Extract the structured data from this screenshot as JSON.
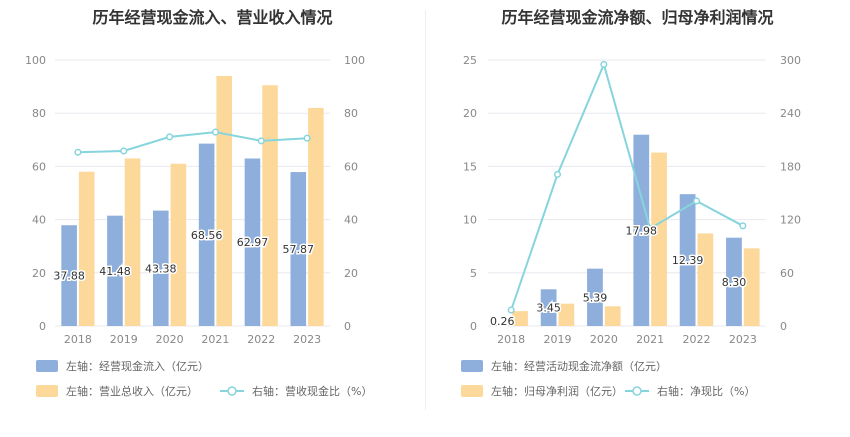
{
  "colors": {
    "bar_blue": "#8eaedc",
    "bar_orange": "#fdd89b",
    "line_cyan": "#86d5dc",
    "grid": "#e8e8ef",
    "text": "#333333"
  },
  "chart_data": [
    {
      "type": "bar",
      "title": "历年经营现金流入、营业收入情况",
      "categories": [
        "2018",
        "2019",
        "2020",
        "2021",
        "2022",
        "2023"
      ],
      "left_axis": {
        "ylim": [
          0,
          100
        ],
        "ticks": [
          "0",
          "20",
          "40",
          "60",
          "80",
          "100"
        ]
      },
      "right_axis": {
        "ylim": [
          0,
          100
        ],
        "ticks": [
          "0",
          "20",
          "40",
          "60",
          "80",
          "100"
        ]
      },
      "series": [
        {
          "name": "左轴：经营现金流入（亿元）",
          "kind": "bar",
          "axis": "left",
          "color": "#8eaedc",
          "values": [
            37.88,
            41.48,
            43.38,
            68.56,
            62.97,
            57.87
          ],
          "labels": [
            "37.88",
            "41.48",
            "43.38",
            "68.56",
            "62.97",
            "57.87"
          ]
        },
        {
          "name": "左轴：营业总收入（亿元）",
          "kind": "bar",
          "axis": "left",
          "color": "#fdd89b",
          "values": [
            58.0,
            63.0,
            61.0,
            94.0,
            90.5,
            82.0
          ]
        },
        {
          "name": "右轴：营收现金比（%）",
          "kind": "line",
          "axis": "right",
          "color": "#86d5dc",
          "values": [
            65.3,
            65.8,
            71.1,
            72.9,
            69.6,
            70.6
          ]
        }
      ],
      "legend": "bottom"
    },
    {
      "type": "bar",
      "title": "历年经营现金流净额、归母净利润情况",
      "categories": [
        "2018",
        "2019",
        "2020",
        "2021",
        "2022",
        "2023"
      ],
      "left_axis": {
        "ylim": [
          0,
          25
        ],
        "ticks": [
          "0",
          "5",
          "10",
          "15",
          "20",
          "25"
        ]
      },
      "right_axis": {
        "ylim": [
          0,
          300
        ],
        "ticks": [
          "0",
          "60",
          "120",
          "180",
          "240",
          "300"
        ]
      },
      "series": [
        {
          "name": "左轴：经营活动现金流净额（亿元）",
          "kind": "bar",
          "axis": "left",
          "color": "#8eaedc",
          "values": [
            0.26,
            3.45,
            5.39,
            17.98,
            12.39,
            8.3
          ],
          "labels": [
            "0.26",
            "3.45",
            "5.39",
            "17.98",
            "12.39",
            "8.30"
          ]
        },
        {
          "name": "左轴：归母净利润（亿元）",
          "kind": "bar",
          "axis": "left",
          "color": "#fdd89b",
          "values": [
            1.4,
            2.1,
            1.85,
            16.3,
            8.7,
            7.3
          ]
        },
        {
          "name": "右轴：净现比（%）",
          "kind": "line",
          "axis": "right",
          "color": "#86d5dc",
          "values": [
            18,
            171,
            295,
            110,
            141,
            113
          ]
        }
      ],
      "legend": "bottom"
    }
  ]
}
